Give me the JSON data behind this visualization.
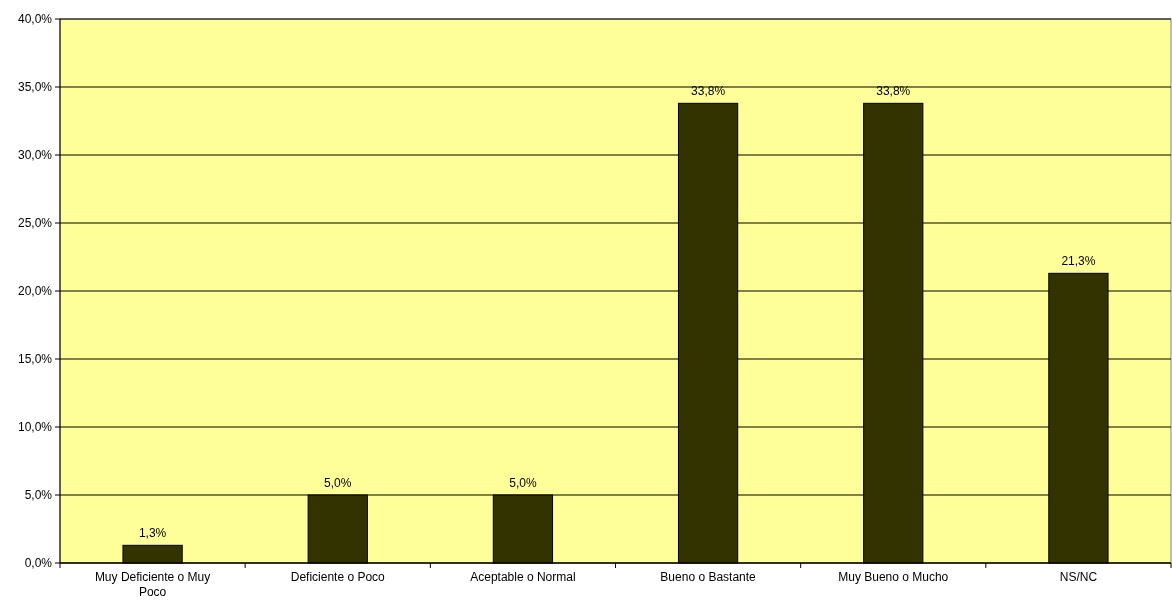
{
  "chart_data": {
    "type": "bar",
    "categories": [
      "Muy Deficiente o Muy Poco",
      "Deficiente o Poco",
      "Aceptable o Normal",
      "Bueno o Bastante",
      "Muy Bueno o Mucho",
      "NS/NC"
    ],
    "values": [
      1.3,
      5.0,
      5.0,
      33.8,
      33.8,
      21.3
    ],
    "value_labels": [
      "1,3%",
      "5,0%",
      "5,0%",
      "33,8%",
      "33,8%",
      "21,3%"
    ],
    "color": "#333300",
    "ylim": [
      0,
      40
    ],
    "yticks": [
      {
        "value": 0,
        "label": "0,0%"
      },
      {
        "value": 5,
        "label": "5,0%"
      },
      {
        "value": 10,
        "label": "10,0%"
      },
      {
        "value": 15,
        "label": "15,0%"
      },
      {
        "value": 20,
        "label": "20,0%"
      },
      {
        "value": 25,
        "label": "25,0%"
      },
      {
        "value": 30,
        "label": "30,0%"
      },
      {
        "value": 35,
        "label": "35,0%"
      },
      {
        "value": 40,
        "label": "40,0%"
      }
    ],
    "grid": "y"
  }
}
